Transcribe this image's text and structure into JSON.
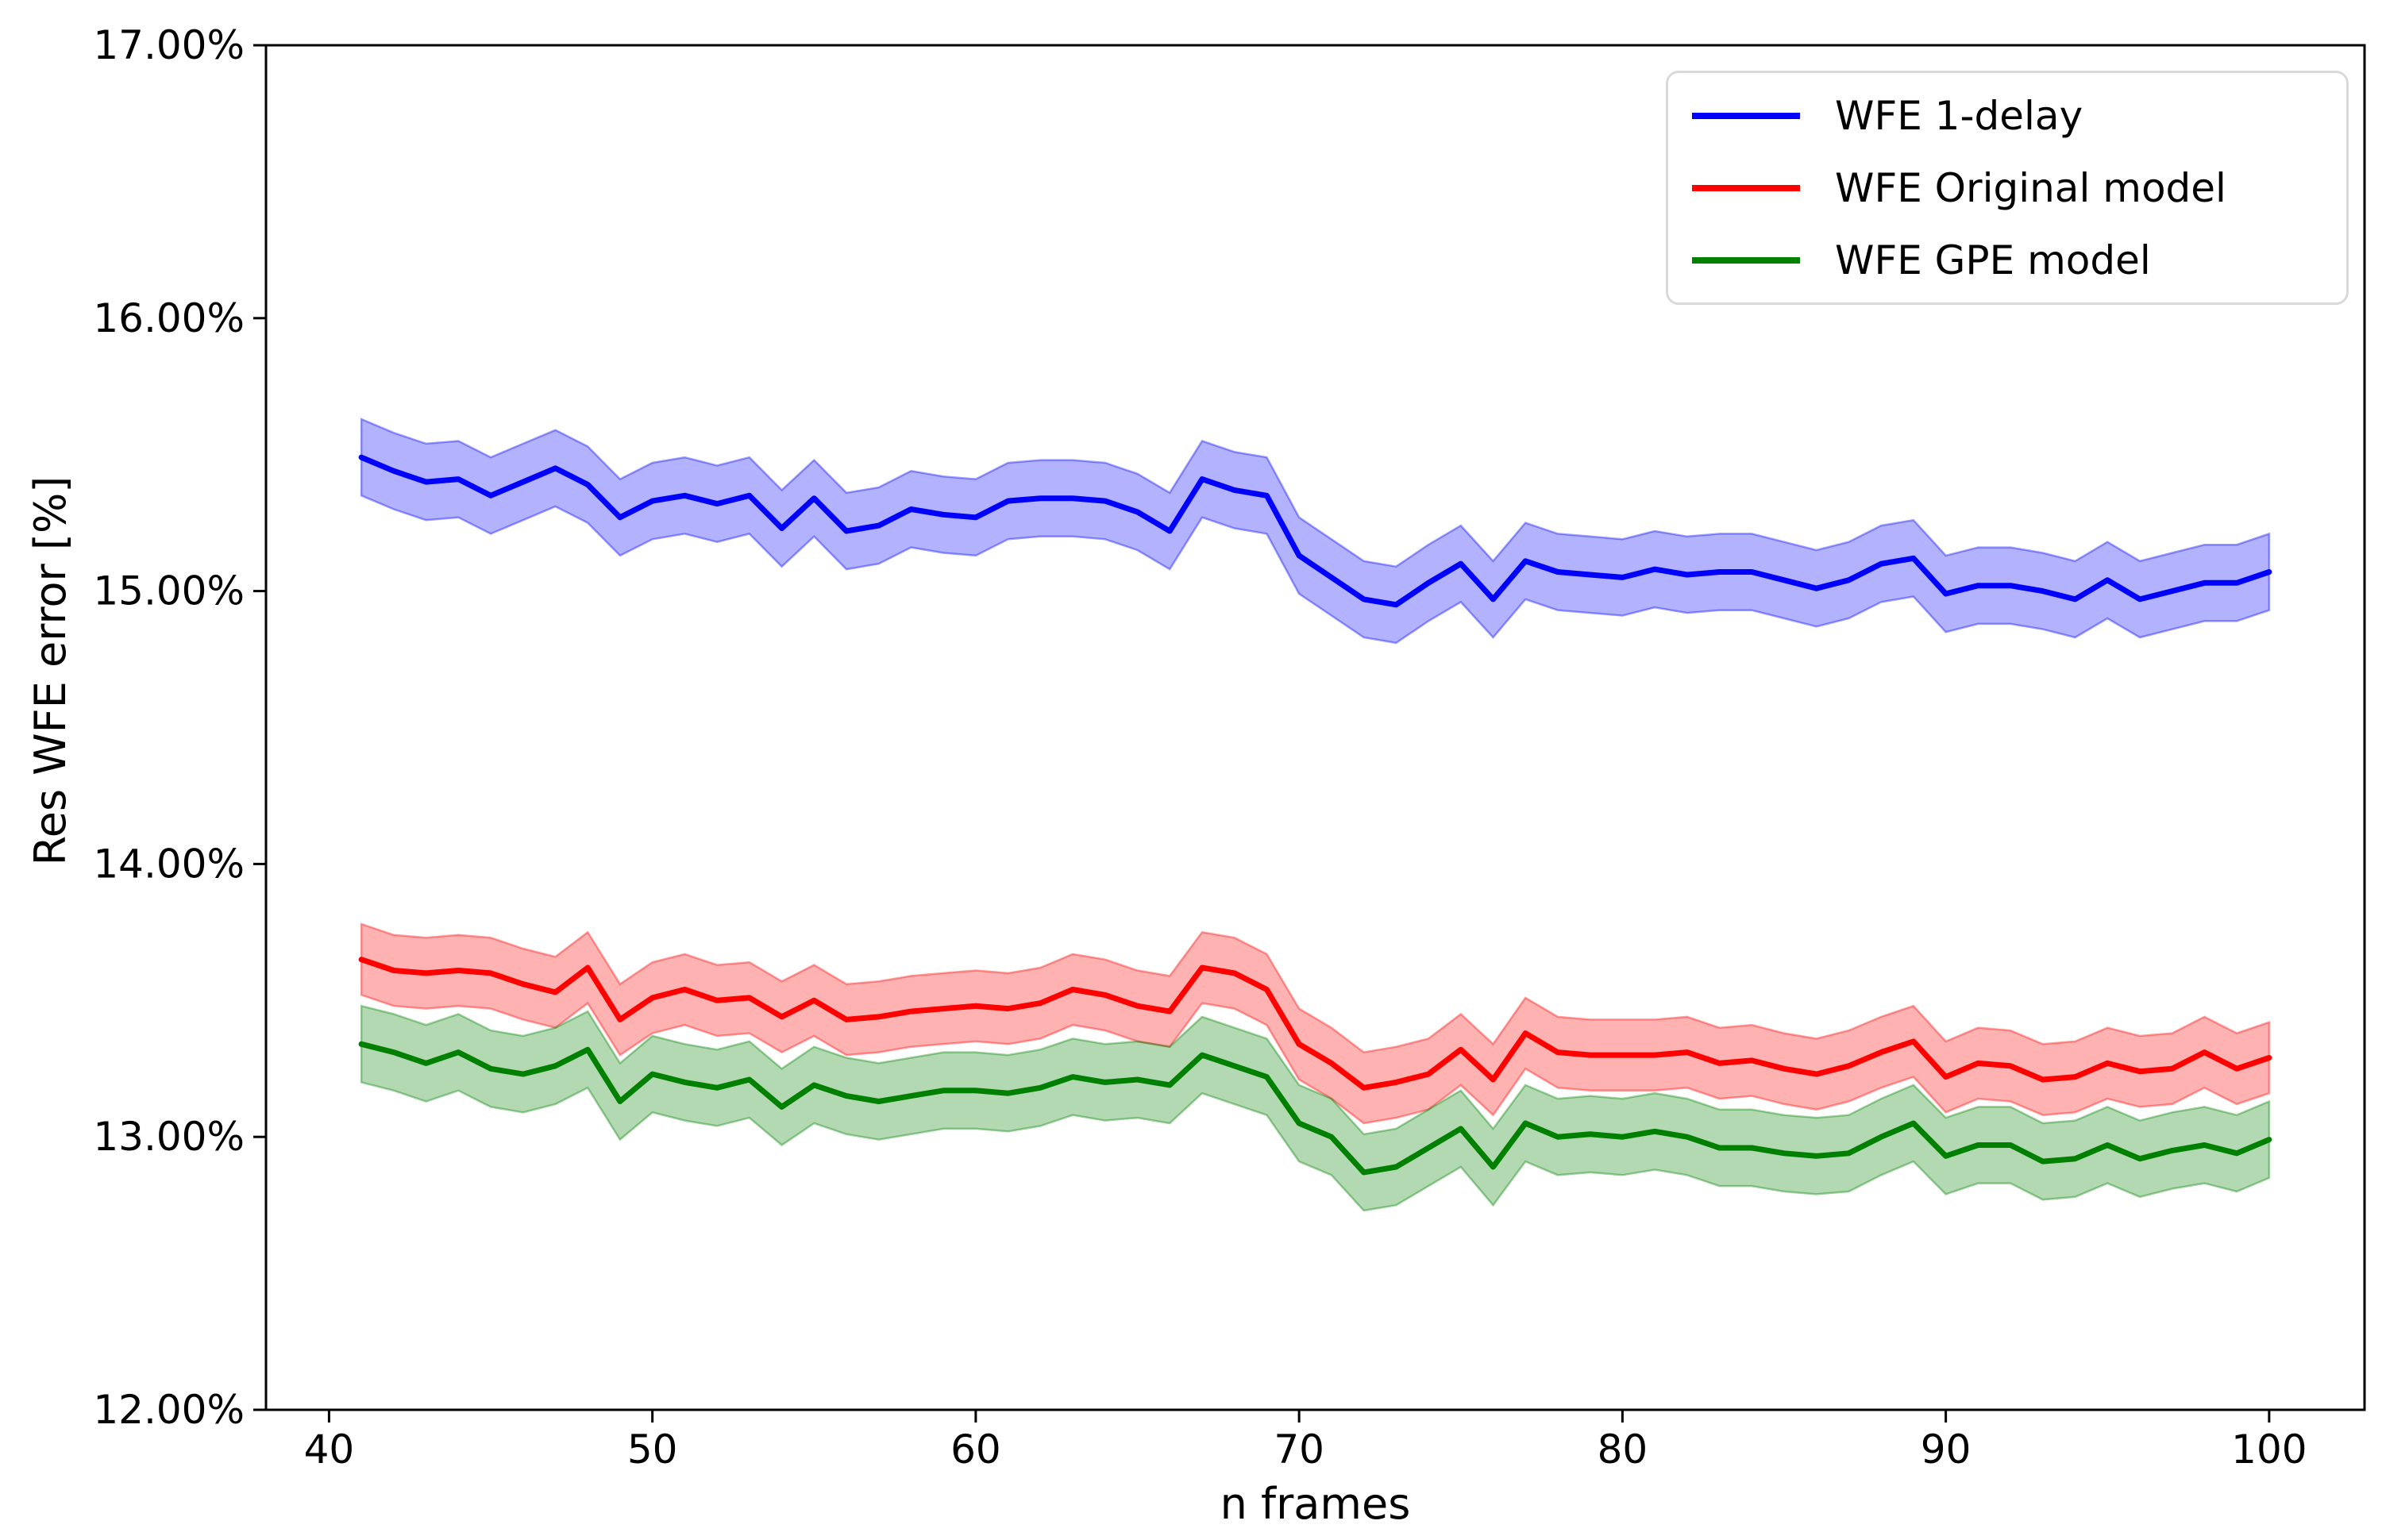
{
  "chart_data": {
    "type": "line",
    "xlabel": "n frames",
    "ylabel": "Res WFE error [%]",
    "xlim": [
      38.05,
      102.95
    ],
    "ylim": [
      12,
      17
    ],
    "grid": false,
    "legend_position": "upper right",
    "background_color": "#ffffff",
    "axis_color": "#000000",
    "x": [
      41,
      42,
      43,
      44,
      45,
      46,
      47,
      48,
      49,
      50,
      51,
      52,
      53,
      54,
      55,
      56,
      57,
      58,
      59,
      60,
      61,
      62,
      63,
      64,
      65,
      66,
      67,
      68,
      69,
      70,
      71,
      72,
      73,
      74,
      75,
      76,
      77,
      78,
      79,
      80,
      81,
      82,
      83,
      84,
      85,
      86,
      87,
      88,
      89,
      90,
      91,
      92,
      93,
      94,
      95,
      96,
      97,
      98,
      99,
      100
    ],
    "xticks": {
      "values": [
        40,
        50,
        60,
        70,
        80,
        90,
        100
      ],
      "labels": [
        "40",
        "50",
        "60",
        "70",
        "80",
        "90",
        "100"
      ]
    },
    "yticks": {
      "values": [
        12,
        13,
        14,
        15,
        16,
        17
      ],
      "labels": [
        "12.00%",
        "13.00%",
        "14.00%",
        "15.00%",
        "16.00%",
        "17.00%"
      ]
    },
    "series": [
      {
        "name": "WFE 1-delay",
        "color": "#0000ff",
        "band_alpha": 0.3,
        "band_halfwidth": 0.14,
        "values": [
          15.49,
          15.44,
          15.4,
          15.41,
          15.35,
          15.4,
          15.45,
          15.39,
          15.27,
          15.33,
          15.35,
          15.32,
          15.35,
          15.23,
          15.34,
          15.22,
          15.24,
          15.3,
          15.28,
          15.27,
          15.33,
          15.34,
          15.34,
          15.33,
          15.29,
          15.22,
          15.41,
          15.37,
          15.35,
          15.13,
          15.05,
          14.97,
          14.95,
          15.03,
          15.1,
          14.97,
          15.11,
          15.07,
          15.06,
          15.05,
          15.08,
          15.06,
          15.07,
          15.07,
          15.04,
          15.01,
          15.04,
          15.1,
          15.12,
          14.99,
          15.02,
          15.02,
          15.0,
          14.97,
          15.04,
          14.97,
          15.0,
          15.03,
          15.03,
          15.07
        ]
      },
      {
        "name": "WFE Original model",
        "color": "#ff0000",
        "band_alpha": 0.3,
        "band_halfwidth": 0.13,
        "values": [
          13.65,
          13.61,
          13.6,
          13.61,
          13.6,
          13.56,
          13.53,
          13.62,
          13.43,
          13.51,
          13.54,
          13.5,
          13.51,
          13.44,
          13.5,
          13.43,
          13.44,
          13.46,
          13.47,
          13.48,
          13.47,
          13.49,
          13.54,
          13.52,
          13.48,
          13.46,
          13.62,
          13.6,
          13.54,
          13.34,
          13.27,
          13.18,
          13.2,
          13.23,
          13.32,
          13.21,
          13.38,
          13.31,
          13.3,
          13.3,
          13.3,
          13.31,
          13.27,
          13.28,
          13.25,
          13.23,
          13.26,
          13.31,
          13.35,
          13.22,
          13.27,
          13.26,
          13.21,
          13.22,
          13.27,
          13.24,
          13.25,
          13.31,
          13.25,
          13.29
        ]
      },
      {
        "name": "WFE GPE model",
        "color": "#008000",
        "band_alpha": 0.3,
        "band_halfwidth": 0.14,
        "values": [
          13.34,
          13.31,
          13.27,
          13.31,
          13.25,
          13.23,
          13.26,
          13.32,
          13.13,
          13.23,
          13.2,
          13.18,
          13.21,
          13.11,
          13.19,
          13.15,
          13.13,
          13.15,
          13.17,
          13.17,
          13.16,
          13.18,
          13.22,
          13.2,
          13.21,
          13.19,
          13.3,
          13.26,
          13.22,
          13.05,
          13.0,
          12.87,
          12.89,
          12.96,
          13.03,
          12.89,
          13.05,
          13.0,
          13.01,
          13.0,
          13.02,
          13.0,
          12.96,
          12.96,
          12.94,
          12.93,
          12.94,
          13.0,
          13.05,
          12.93,
          12.97,
          12.97,
          12.91,
          12.92,
          12.97,
          12.92,
          12.95,
          12.97,
          12.94,
          12.99
        ]
      }
    ]
  }
}
